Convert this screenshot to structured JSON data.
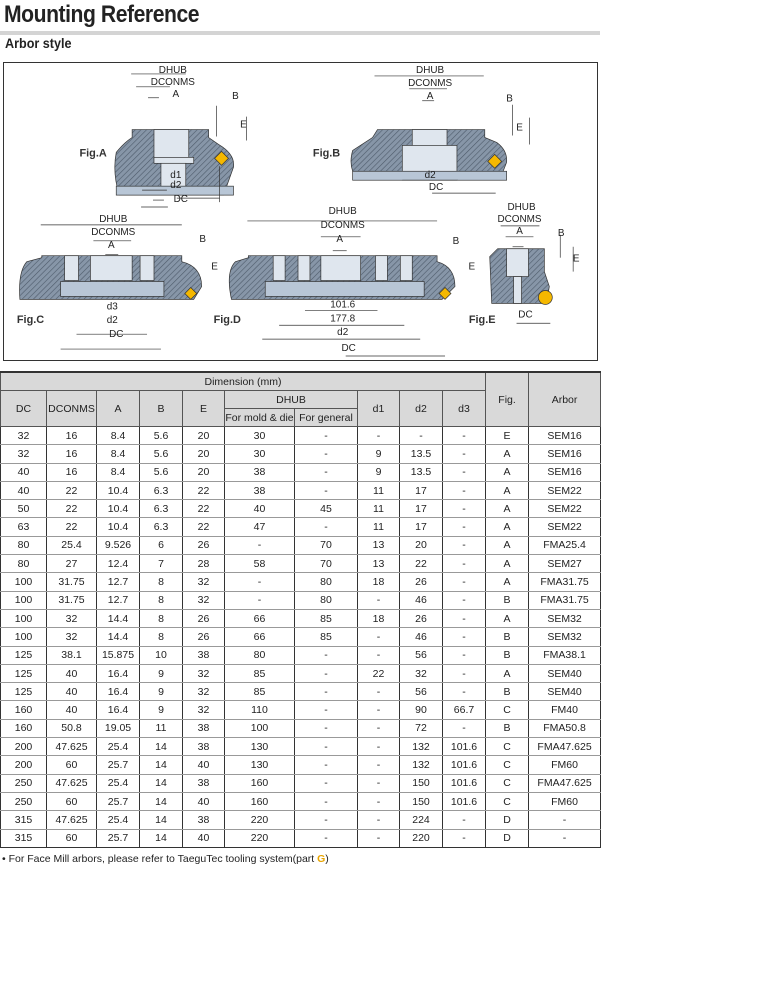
{
  "title": "Mounting Reference",
  "subtitle": "Arbor style",
  "diagram": {
    "figs": [
      "Fig.A",
      "Fig.B",
      "Fig.C",
      "Fig.D",
      "Fig.E"
    ],
    "labels": {
      "dhub": "DHUB",
      "dconms": "DCONMS",
      "a": "A",
      "b": "B",
      "e": "E",
      "d1": "d1",
      "d2": "d2",
      "d3": "d3",
      "dc": "DC",
      "pcd1": "101.6",
      "pcd2": "177.8"
    },
    "colors": {
      "body": "#8a99aa",
      "insert": "#f5b800"
    }
  },
  "table": {
    "group_header": "Dimension (mm)",
    "headers": {
      "dc": "DC",
      "dconms": "DCONMS",
      "a": "A",
      "b": "B",
      "e": "E",
      "dhub": "DHUB",
      "dhub_mold": "For mold & die",
      "dhub_general": "For general",
      "d1": "d1",
      "d2": "d2",
      "d3": "d3",
      "fig": "Fig.",
      "arbor": "Arbor"
    },
    "rows": [
      [
        "32",
        "16",
        "8.4",
        "5.6",
        "20",
        "30",
        "-",
        "-",
        "-",
        "-",
        "E",
        "SEM16"
      ],
      [
        "32",
        "16",
        "8.4",
        "5.6",
        "20",
        "30",
        "-",
        "9",
        "13.5",
        "-",
        "A",
        "SEM16"
      ],
      [
        "40",
        "16",
        "8.4",
        "5.6",
        "20",
        "38",
        "-",
        "9",
        "13.5",
        "-",
        "A",
        "SEM16"
      ],
      [
        "40",
        "22",
        "10.4",
        "6.3",
        "22",
        "38",
        "-",
        "11",
        "17",
        "-",
        "A",
        "SEM22"
      ],
      [
        "50",
        "22",
        "10.4",
        "6.3",
        "22",
        "40",
        "45",
        "11",
        "17",
        "-",
        "A",
        "SEM22"
      ],
      [
        "63",
        "22",
        "10.4",
        "6.3",
        "22",
        "47",
        "-",
        "11",
        "17",
        "-",
        "A",
        "SEM22"
      ],
      [
        "80",
        "25.4",
        "9.526",
        "6",
        "26",
        "-",
        "70",
        "13",
        "20",
        "-",
        "A",
        "FMA25.4"
      ],
      [
        "80",
        "27",
        "12.4",
        "7",
        "28",
        "58",
        "70",
        "13",
        "22",
        "-",
        "A",
        "SEM27"
      ],
      [
        "100",
        "31.75",
        "12.7",
        "8",
        "32",
        "-",
        "80",
        "18",
        "26",
        "-",
        "A",
        "FMA31.75"
      ],
      [
        "100",
        "31.75",
        "12.7",
        "8",
        "32",
        "-",
        "80",
        "-",
        "46",
        "-",
        "B",
        "FMA31.75"
      ],
      [
        "100",
        "32",
        "14.4",
        "8",
        "26",
        "66",
        "85",
        "18",
        "26",
        "-",
        "A",
        "SEM32"
      ],
      [
        "100",
        "32",
        "14.4",
        "8",
        "26",
        "66",
        "85",
        "-",
        "46",
        "-",
        "B",
        "SEM32"
      ],
      [
        "125",
        "38.1",
        "15.875",
        "10",
        "38",
        "80",
        "-",
        "-",
        "56",
        "-",
        "B",
        "FMA38.1"
      ],
      [
        "125",
        "40",
        "16.4",
        "9",
        "32",
        "85",
        "-",
        "22",
        "32",
        "-",
        "A",
        "SEM40"
      ],
      [
        "125",
        "40",
        "16.4",
        "9",
        "32",
        "85",
        "-",
        "-",
        "56",
        "-",
        "B",
        "SEM40"
      ],
      [
        "160",
        "40",
        "16.4",
        "9",
        "32",
        "110",
        "-",
        "-",
        "90",
        "66.7",
        "C",
        "FM40"
      ],
      [
        "160",
        "50.8",
        "19.05",
        "11",
        "38",
        "100",
        "-",
        "-",
        "72",
        "-",
        "B",
        "FMA50.8"
      ],
      [
        "200",
        "47.625",
        "25.4",
        "14",
        "38",
        "130",
        "-",
        "-",
        "132",
        "101.6",
        "C",
        "FMA47.625"
      ],
      [
        "200",
        "60",
        "25.7",
        "14",
        "40",
        "130",
        "-",
        "-",
        "132",
        "101.6",
        "C",
        "FM60"
      ],
      [
        "250",
        "47.625",
        "25.4",
        "14",
        "38",
        "160",
        "-",
        "-",
        "150",
        "101.6",
        "C",
        "FMA47.625"
      ],
      [
        "250",
        "60",
        "25.7",
        "14",
        "40",
        "160",
        "-",
        "-",
        "150",
        "101.6",
        "C",
        "FM60"
      ],
      [
        "315",
        "47.625",
        "25.4",
        "14",
        "38",
        "220",
        "-",
        "-",
        "224",
        "-",
        "D",
        "-"
      ],
      [
        "315",
        "60",
        "25.7",
        "14",
        "40",
        "220",
        "-",
        "-",
        "220",
        "-",
        "D",
        "-"
      ]
    ]
  },
  "note": {
    "text": "• For Face Mill arbors, please refer to TaeguTec tooling system(part ",
    "part": "G",
    "close": ")"
  }
}
